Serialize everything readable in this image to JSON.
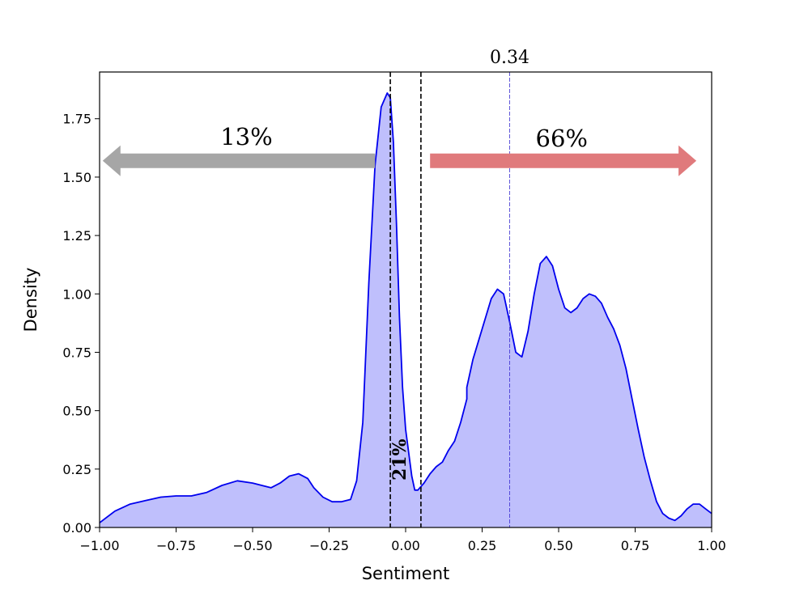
{
  "chart_data": {
    "type": "area",
    "xlabel": "Sentiment",
    "ylabel": "Density",
    "xlim": [
      -1.0,
      1.0
    ],
    "ylim": [
      0.0,
      1.95
    ],
    "x_ticks": [
      "−1.00",
      "−0.75",
      "−0.50",
      "−0.25",
      "0.00",
      "0.25",
      "0.50",
      "0.75",
      "1.00"
    ],
    "y_ticks": [
      "0.00",
      "0.25",
      "0.50",
      "0.75",
      "1.00",
      "1.25",
      "1.50",
      "1.75"
    ],
    "grid": false,
    "series": [
      {
        "color": "#0000ee",
        "fill": "#bfbffc",
        "x": [
          -1.0,
          -0.95,
          -0.9,
          -0.85,
          -0.8,
          -0.75,
          -0.7,
          -0.65,
          -0.6,
          -0.55,
          -0.5,
          -0.47,
          -0.44,
          -0.41,
          -0.38,
          -0.35,
          -0.32,
          -0.3,
          -0.27,
          -0.24,
          -0.21,
          -0.18,
          -0.16,
          -0.14,
          -0.12,
          -0.1,
          -0.08,
          -0.06,
          -0.05,
          -0.04,
          -0.03,
          -0.02,
          -0.01,
          0.0,
          0.01,
          0.02,
          0.03,
          0.04,
          0.06,
          0.08,
          0.1,
          0.12,
          0.14,
          0.16,
          0.18,
          0.2,
          0.2,
          0.22,
          0.25,
          0.28,
          0.3,
          0.32,
          0.34,
          0.36,
          0.38,
          0.4,
          0.42,
          0.44,
          0.46,
          0.48,
          0.5,
          0.52,
          0.54,
          0.56,
          0.58,
          0.6,
          0.62,
          0.64,
          0.66,
          0.68,
          0.7,
          0.72,
          0.74,
          0.76,
          0.78,
          0.8,
          0.82,
          0.84,
          0.86,
          0.88,
          0.9,
          0.92,
          0.94,
          0.96,
          0.98,
          1.0
        ],
        "y": [
          0.02,
          0.07,
          0.1,
          0.115,
          0.13,
          0.135,
          0.135,
          0.15,
          0.18,
          0.2,
          0.19,
          0.18,
          0.17,
          0.19,
          0.22,
          0.23,
          0.21,
          0.17,
          0.13,
          0.11,
          0.11,
          0.12,
          0.2,
          0.45,
          1.05,
          1.55,
          1.8,
          1.86,
          1.84,
          1.65,
          1.3,
          0.9,
          0.6,
          0.42,
          0.32,
          0.22,
          0.16,
          0.16,
          0.19,
          0.23,
          0.26,
          0.28,
          0.33,
          0.37,
          0.45,
          0.55,
          0.6,
          0.72,
          0.85,
          0.98,
          1.02,
          1.0,
          0.88,
          0.75,
          0.73,
          0.84,
          1.0,
          1.13,
          1.16,
          1.12,
          1.02,
          0.94,
          0.92,
          0.94,
          0.98,
          1.0,
          0.99,
          0.96,
          0.9,
          0.85,
          0.78,
          0.68,
          0.55,
          0.42,
          0.3,
          0.2,
          0.11,
          0.06,
          0.04,
          0.03,
          0.05,
          0.08,
          0.1,
          0.1,
          0.08,
          0.06
        ]
      }
    ],
    "vlines": [
      {
        "x": -0.05,
        "style": "dashed",
        "color": "#000000"
      },
      {
        "x": 0.05,
        "style": "dashed",
        "color": "#000000"
      },
      {
        "x": 0.34,
        "style": "thin-dashed",
        "color": "#3a2fd0"
      }
    ],
    "annotations": {
      "mean_label": "0.34",
      "negative_pct": "13%",
      "neutral_pct": "21%",
      "positive_pct": "66%"
    },
    "arrows": {
      "negative": {
        "x_from": -0.1,
        "x_to": -0.99,
        "y": 1.57,
        "color": "#a6a6a6"
      },
      "positive": {
        "x_from": 0.08,
        "x_to": 0.95,
        "y": 1.57,
        "color": "#e07a7c"
      }
    }
  }
}
